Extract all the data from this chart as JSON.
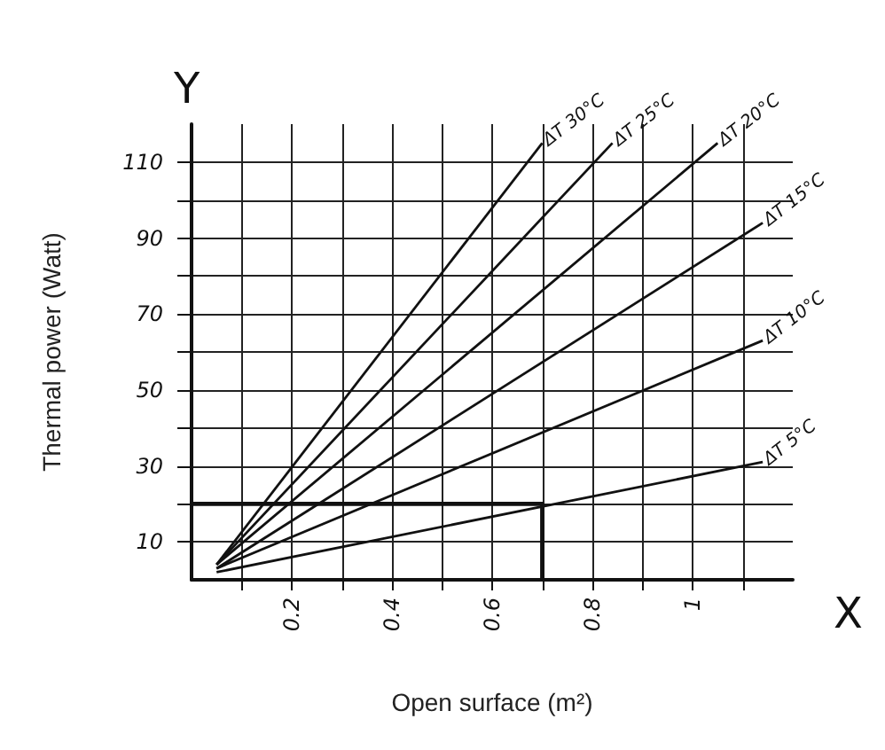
{
  "chart_data": {
    "type": "line",
    "xlabel": "Open surface (m²)",
    "ylabel": "Thermal power (Watt)",
    "annotations": [
      "Y",
      "X"
    ],
    "xlim": [
      0,
      1.2
    ],
    "ylim": [
      0,
      120
    ],
    "xticks": [
      {
        "value": 0.1,
        "label": null
      },
      0.2,
      {
        "value": 0.3,
        "label": null
      },
      0.4,
      {
        "value": 0.5,
        "label": null
      },
      0.6,
      {
        "value": 0.7,
        "label": null
      },
      0.8,
      {
        "value": 0.9,
        "label": null
      },
      1,
      {
        "value": 1.1,
        "label": null
      }
    ],
    "yticks": [
      10,
      {
        "value": 20,
        "label": null
      },
      30,
      {
        "value": 40,
        "label": null
      },
      50,
      {
        "value": 60,
        "label": null
      },
      70,
      {
        "value": 80,
        "label": null
      },
      90,
      {
        "value": 100,
        "label": null
      },
      110
    ],
    "grid": true,
    "legend": false,
    "marker": "none",
    "line_style": "solid",
    "series": [
      {
        "name": "ΔT 30°C",
        "color": "#111111",
        "x": [
          0.05,
          0.7
        ],
        "values": [
          4,
          115
        ]
      },
      {
        "name": "ΔT 25°C",
        "color": "#111111",
        "x": [
          0.05,
          0.84
        ],
        "values": [
          4,
          115
        ]
      },
      {
        "name": "ΔT 20°C",
        "color": "#111111",
        "x": [
          0.05,
          1.05
        ],
        "values": [
          4,
          115
        ]
      },
      {
        "name": "ΔT 15°C",
        "color": "#111111",
        "x": [
          0.05,
          1.14
        ],
        "values": [
          3,
          94
        ]
      },
      {
        "name": "ΔT 10°C",
        "color": "#111111",
        "x": [
          0.05,
          1.14
        ],
        "values": [
          3,
          63
        ]
      },
      {
        "name": "ΔT 5°C",
        "color": "#111111",
        "x": [
          0.05,
          1.14
        ],
        "values": [
          2,
          31
        ]
      },
      {
        "color": "#111111",
        "x": [
          0.7,
          0.7,
          0
        ],
        "values": [
          0,
          20,
          20
        ]
      }
    ]
  }
}
